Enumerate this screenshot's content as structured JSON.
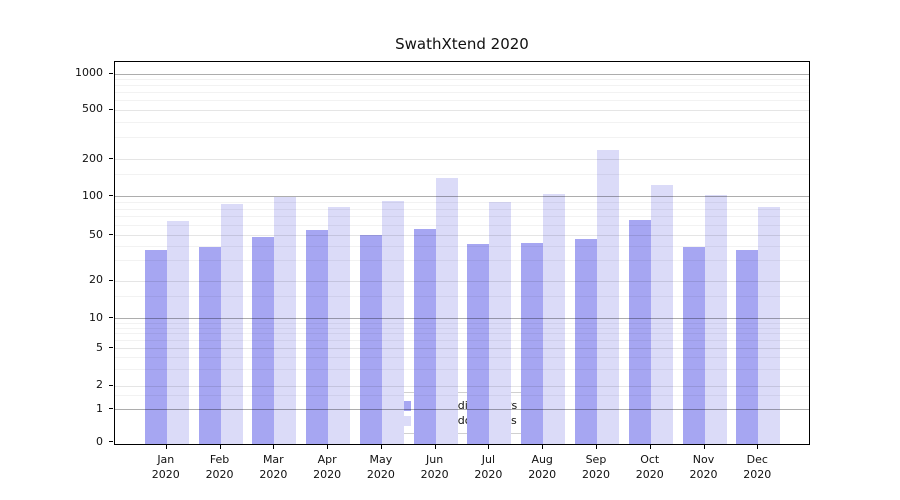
{
  "title": "SwathXtend 2020",
  "y_axis": {
    "tick_labels": [
      "0",
      "1",
      "2",
      "5",
      "10",
      "20",
      "50",
      "100",
      "200",
      "500",
      "1000"
    ]
  },
  "x_axis": {
    "tick_labels": [
      "Jan 2020",
      "Feb 2020",
      "Mar 2020",
      "Apr 2020",
      "May 2020",
      "Jun 2020",
      "Jul 2020",
      "Aug 2020",
      "Sep 2020",
      "Oct 2020",
      "Nov 2020",
      "Dec 2020"
    ]
  },
  "legend": {
    "items": [
      {
        "label": "Nb of distinct IPs",
        "color": "#a6a6f2"
      },
      {
        "label": "Nb of downloads",
        "color": "#dbdbf8"
      }
    ]
  },
  "colors": {
    "distinct_ips_bar": "#a6a6f2",
    "downloads_bar": "#dbdbf8",
    "major_grid": "rgba(0,0,0,0.32)",
    "labeled_grid": "rgba(0,0,0,0.10)",
    "minor_grid": "rgba(0,0,0,0.05)"
  },
  "chart_data": {
    "type": "bar",
    "title": "SwathXtend 2020",
    "categories": [
      "Jan 2020",
      "Feb 2020",
      "Mar 2020",
      "Apr 2020",
      "May 2020",
      "Jun 2020",
      "Jul 2020",
      "Aug 2020",
      "Sep 2020",
      "Oct 2020",
      "Nov 2020",
      "Dec 2020"
    ],
    "series": [
      {
        "name": "Nb of distinct IPs",
        "color": "#a6a6f2",
        "values": [
          37,
          39,
          48,
          55,
          50,
          56,
          42,
          43,
          46,
          65,
          39,
          37
        ]
      },
      {
        "name": "Nb of downloads",
        "color": "#dbdbf8",
        "values": [
          64,
          87,
          98,
          83,
          92,
          140,
          91,
          104,
          236,
          123,
          102,
          82
        ]
      }
    ],
    "xlabel": "",
    "ylabel": "",
    "yscale": "symlog",
    "yticks": [
      0,
      1,
      2,
      5,
      10,
      20,
      50,
      100,
      200,
      500,
      1000
    ],
    "ylim": [
      0,
      1300
    ],
    "grid": true,
    "legend_position": "inside lower center"
  }
}
